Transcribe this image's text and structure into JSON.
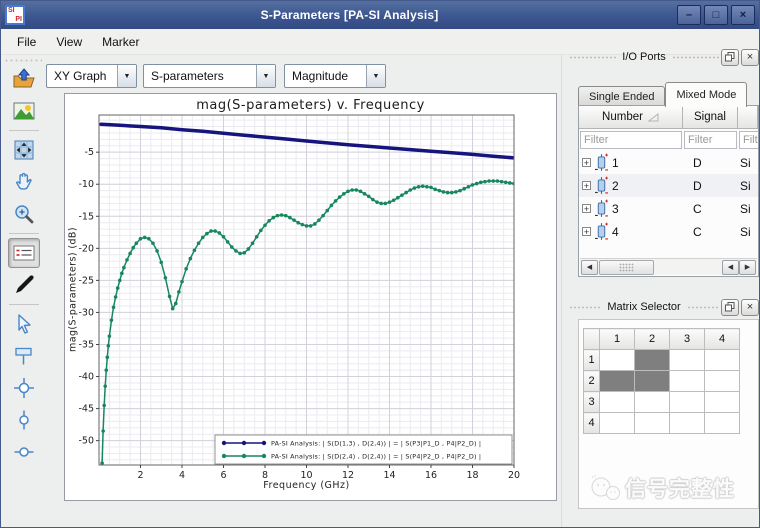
{
  "window": {
    "title": "S-Parameters [PA-SI Analysis]",
    "logo": {
      "line1": "SI",
      "line2": "PI"
    }
  },
  "icons": {
    "minimize": "–",
    "maximize": "□",
    "close": "×",
    "panel_close": "×",
    "dropdown_arrow": "▼",
    "scroll_left": "◀",
    "scroll_right": "▶",
    "tree_expand": "+"
  },
  "menu": {
    "items": [
      {
        "label": "File"
      },
      {
        "label": "View"
      },
      {
        "label": "Marker"
      }
    ]
  },
  "toolbar": {
    "plot_type": "XY Graph",
    "parameter": "S-parameters",
    "format": "Magnitude"
  },
  "sidebar": {
    "icons": [
      "export-icon",
      "image-icon",
      "zoom-fit-icon",
      "pan-hand-icon",
      "zoom-in-icon",
      "legend-icon",
      "pen-annotate-icon",
      "select-cursor-icon",
      "marker-flag-icon",
      "marker-crosshair-icon",
      "marker-vertical-icon",
      "marker-horizontal-icon"
    ],
    "selected_icon": "legend-icon"
  },
  "io_ports": {
    "title": "I/O Ports",
    "tabs": [
      {
        "label": "Single Ended",
        "active": false
      },
      {
        "label": "Mixed Mode",
        "active": true
      }
    ],
    "columns": [
      "Number",
      "Signal",
      ""
    ],
    "filter_placeholder": "Filter",
    "highlighted_row": 2,
    "rows": [
      {
        "number": "1",
        "signal": "D",
        "type": "Si"
      },
      {
        "number": "2",
        "signal": "D",
        "type": "Si"
      },
      {
        "number": "3",
        "signal": "C",
        "type": "Si"
      },
      {
        "number": "4",
        "signal": "C",
        "type": "Si"
      }
    ]
  },
  "matrix_selector": {
    "title": "Matrix Selector",
    "columns": [
      "1",
      "2",
      "3",
      "4"
    ],
    "rows": [
      "1",
      "2",
      "3",
      "4"
    ],
    "selected_cells": [
      [
        1,
        2
      ],
      [
        2,
        1
      ],
      [
        2,
        2
      ]
    ],
    "selected_color": "#7f7f7f"
  },
  "watermark": {
    "text": "信号完整性"
  },
  "chart_data": {
    "type": "line",
    "title": "mag(S-parameters) v. Frequency",
    "xlabel": "Frequency (GHz)",
    "ylabel": "mag(S-parameters) (dB)",
    "xlim": [
      0,
      20
    ],
    "ylim": [
      -53.8,
      0.8
    ],
    "xticks": [
      2,
      4,
      6,
      8,
      10,
      12,
      14,
      16,
      18,
      20
    ],
    "yticks": [
      -5,
      -10,
      -15,
      -20,
      -25,
      -30,
      -35,
      -40,
      -45,
      -50
    ],
    "minor_x": 0.5,
    "minor_y": 1,
    "grid": true,
    "legend_position": "bottom-right",
    "series": [
      {
        "name": "PA-SI Analysis: | S(D(1,3) , D(2,4)) | = | S(P3|P1_D , P4|P2_D) |",
        "color": "#15157d",
        "marker": "none",
        "width": 3.5,
        "x": [
          0.1,
          1,
          2,
          3,
          4,
          5,
          6,
          7,
          8,
          9,
          10,
          11,
          12,
          13,
          14,
          15,
          16,
          17,
          18,
          19,
          20
        ],
        "y": [
          -0.65,
          -0.8,
          -1.0,
          -1.2,
          -1.5,
          -1.75,
          -2.05,
          -2.35,
          -2.65,
          -2.95,
          -3.25,
          -3.55,
          -3.85,
          -4.1,
          -4.35,
          -4.6,
          -4.85,
          -5.1,
          -5.35,
          -5.65,
          -5.9
        ]
      },
      {
        "name": "PA-SI Analysis: | S(D(2,4) , D(2,4)) | = | S(P4|P2_D , P4|P2_D) |",
        "color": "#17875e",
        "marker": "circle",
        "width": 1.5,
        "x": [
          0.15,
          0.2,
          0.25,
          0.3,
          0.35,
          0.4,
          0.45,
          0.5,
          0.6,
          0.7,
          0.8,
          0.9,
          1.0,
          1.1,
          1.2,
          1.35,
          1.5,
          1.65,
          1.8,
          2.0,
          2.2,
          2.4,
          2.6,
          2.8,
          3.0,
          3.2,
          3.4,
          3.55,
          3.7,
          3.85,
          4.0,
          4.2,
          4.4,
          4.6,
          4.8,
          5.0,
          5.2,
          5.4,
          5.6,
          5.8,
          6.0,
          6.2,
          6.4,
          6.6,
          6.8,
          7.0,
          7.2,
          7.4,
          7.6,
          7.8,
          8.0,
          8.2,
          8.4,
          8.6,
          8.8,
          9.0,
          9.2,
          9.4,
          9.6,
          9.8,
          10.0,
          10.2,
          10.4,
          10.6,
          10.8,
          11.0,
          11.2,
          11.4,
          11.6,
          11.8,
          12.0,
          12.2,
          12.4,
          12.6,
          12.8,
          13.0,
          13.2,
          13.4,
          13.6,
          13.8,
          14.0,
          14.2,
          14.4,
          14.6,
          14.8,
          15.0,
          15.2,
          15.4,
          15.6,
          15.8,
          16.0,
          16.2,
          16.4,
          16.6,
          16.8,
          17.0,
          17.2,
          17.4,
          17.6,
          17.8,
          18.0,
          18.2,
          18.4,
          18.6,
          18.8,
          19.0,
          19.2,
          19.4,
          19.6,
          19.8,
          20.0
        ],
        "y": [
          -53.5,
          -48.5,
          -44.5,
          -41.5,
          -39.0,
          -37.0,
          -35.2,
          -33.7,
          -31.2,
          -29.2,
          -27.6,
          -26.2,
          -25.0,
          -23.9,
          -23.0,
          -21.8,
          -20.8,
          -19.9,
          -19.2,
          -18.5,
          -18.3,
          -18.5,
          -19.2,
          -20.4,
          -22.2,
          -24.6,
          -27.5,
          -29.4,
          -28.6,
          -26.8,
          -25.2,
          -23.2,
          -21.6,
          -20.3,
          -19.2,
          -18.3,
          -17.7,
          -17.3,
          -17.3,
          -17.6,
          -18.2,
          -19.0,
          -19.8,
          -20.4,
          -20.8,
          -20.7,
          -20.1,
          -19.2,
          -18.2,
          -17.2,
          -16.4,
          -15.7,
          -15.2,
          -14.9,
          -14.8,
          -14.9,
          -15.2,
          -15.6,
          -16.0,
          -16.3,
          -16.5,
          -16.5,
          -16.2,
          -15.6,
          -14.9,
          -14.1,
          -13.3,
          -12.6,
          -12.0,
          -11.5,
          -11.1,
          -10.9,
          -10.9,
          -11.1,
          -11.5,
          -11.9,
          -12.4,
          -12.8,
          -13.0,
          -13.0,
          -12.8,
          -12.5,
          -12.1,
          -11.7,
          -11.3,
          -10.9,
          -10.6,
          -10.4,
          -10.3,
          -10.4,
          -10.5,
          -10.8,
          -11.0,
          -11.2,
          -11.3,
          -11.3,
          -11.2,
          -11.0,
          -10.7,
          -10.4,
          -10.1,
          -9.9,
          -9.7,
          -9.6,
          -9.5,
          -9.5,
          -9.5,
          -9.6,
          -9.7,
          -9.8,
          -9.9
        ]
      }
    ]
  }
}
